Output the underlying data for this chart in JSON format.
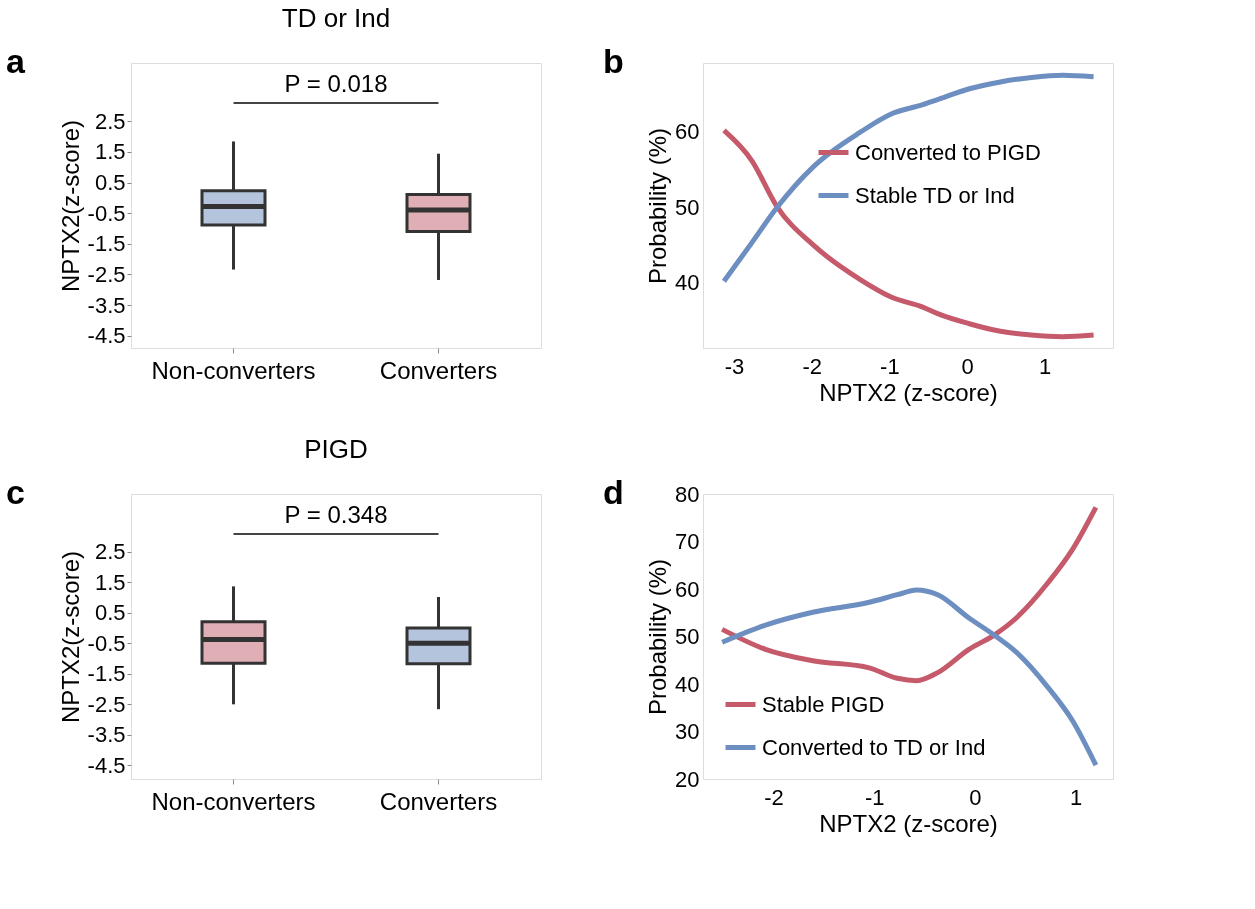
{
  "chart_data": [
    {
      "type": "box",
      "title": "TD or Ind",
      "ylabel": "NPTX2(z-score)",
      "categories": [
        "Non-converters",
        "Converters"
      ],
      "boxes": [
        {
          "low": -2.34,
          "q1": -0.89,
          "median": -0.28,
          "q3": 0.23,
          "high": 1.84
        },
        {
          "low": -2.68,
          "q1": -1.1,
          "median": -0.4,
          "q3": 0.11,
          "high": 1.44
        }
      ],
      "colors": [
        "#b4c4dc",
        "#e0aeb5"
      ],
      "ylim": [
        -4.9,
        4.4
      ],
      "yticks": [
        2.5,
        1.5,
        0.5,
        -0.5,
        -1.5,
        -2.5,
        -3.5,
        -4.5
      ],
      "annotations": [
        "a",
        "P = 0.018"
      ]
    },
    {
      "type": "line",
      "xlabel": "NPTX2 (z-score)",
      "ylabel": "Probability (%)",
      "xlim": [
        -3.4,
        1.88
      ],
      "xticks": [
        -3,
        -2,
        -1,
        0,
        1
      ],
      "ylim": [
        31.4,
        69
      ],
      "yticks": [
        40,
        50,
        60
      ],
      "legend": "top right",
      "series": [
        {
          "name": "Converted to PIGD",
          "color": "#c55a6b",
          "x": [
            -3.13,
            -2.77,
            -2.45,
            -1.97,
            -1.37,
            -0.97,
            -0.57,
            -0.37,
            0.03,
            0.43,
            0.83,
            1.23,
            1.63
          ],
          "values": [
            60.1,
            56.1,
            50.1,
            44.9,
            40.4,
            38.1,
            36.8,
            35.9,
            34.6,
            33.6,
            33.1,
            32.9,
            33.1
          ]
        },
        {
          "name": "Stable TD or Ind",
          "color": "#6d8ec0",
          "x": [
            -3.13,
            -2.77,
            -2.45,
            -1.97,
            -1.37,
            -0.97,
            -0.57,
            -0.37,
            0.03,
            0.43,
            0.83,
            1.23,
            1.63
          ],
          "values": [
            40.2,
            45.3,
            49.9,
            55.4,
            59.9,
            62.3,
            63.5,
            64.2,
            65.6,
            66.5,
            67.1,
            67.4,
            67.2
          ]
        }
      ],
      "annotations": [
        "b"
      ]
    },
    {
      "type": "box",
      "title": "PIGD",
      "ylabel": "NPTX2(z-score)",
      "categories": [
        "Non-converters",
        "Converters"
      ],
      "boxes": [
        {
          "low": -2.5,
          "q1": -1.15,
          "median": -0.37,
          "q3": 0.21,
          "high": 1.37
        },
        {
          "low": -2.66,
          "q1": -1.17,
          "median": -0.5,
          "q3": 0.0,
          "high": 1.02
        }
      ],
      "colors": [
        "#e0aeb5",
        "#b4c4dc"
      ],
      "ylim": [
        -4.95,
        4.4
      ],
      "yticks": [
        2.5,
        1.5,
        0.5,
        -0.5,
        -1.5,
        -2.5,
        -3.5,
        -4.5
      ],
      "annotations": [
        "c",
        "P = 0.348"
      ]
    },
    {
      "type": "line",
      "xlabel": "NPTX2 (z-score)",
      "ylabel": "Probability (%)",
      "xlim": [
        -2.7,
        1.37
      ],
      "xticks": [
        -2,
        -1,
        0,
        1
      ],
      "ylim": [
        20,
        80
      ],
      "yticks": [
        20,
        30,
        40,
        50,
        60,
        70,
        80
      ],
      "legend": "bottom left",
      "series": [
        {
          "name": "Stable PIGD",
          "color": "#c55a6b",
          "x": [
            -2.51,
            -2.08,
            -1.61,
            -1.05,
            -0.77,
            -0.58,
            -0.37,
            -0.06,
            0.19,
            0.41,
            0.72,
            0.97,
            1.2
          ],
          "values": [
            51.5,
            47.3,
            44.9,
            43.4,
            41.2,
            40.7,
            42.4,
            47.3,
            50.3,
            53.9,
            61.2,
            68.4,
            77.2
          ]
        },
        {
          "name": "Converted to TD or Ind",
          "color": "#6d8ec0",
          "x": [
            -2.51,
            -2.08,
            -1.61,
            -1.05,
            -0.77,
            -0.58,
            -0.37,
            -0.06,
            0.19,
            0.41,
            0.72,
            0.97,
            1.2
          ],
          "values": [
            48.8,
            52.4,
            55.1,
            57.2,
            58.8,
            59.8,
            58.8,
            53.9,
            50.3,
            46.7,
            39.4,
            32.2,
            22.9
          ]
        }
      ],
      "annotations": [
        "d"
      ]
    }
  ]
}
